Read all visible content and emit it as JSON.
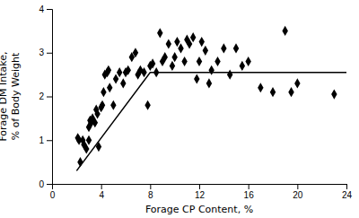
{
  "chart_data": {
    "type": "scatter",
    "xlabel": "Forage CP Content, %",
    "ylabel": "Forage DM Intake,\n% of Body Weight",
    "xlim": [
      0,
      24
    ],
    "ylim": [
      0,
      4
    ],
    "xticks": [
      0,
      4,
      8,
      12,
      16,
      20,
      24
    ],
    "yticks": [
      0,
      1,
      2,
      3,
      4
    ],
    "grid": false,
    "series": [
      {
        "type": "scatter",
        "color": "#000000",
        "marker": "diamond",
        "x": [
          2.1,
          2.2,
          2.3,
          2.5,
          2.6,
          2.8,
          3.0,
          3.0,
          3.1,
          3.2,
          3.3,
          3.5,
          3.6,
          3.7,
          3.8,
          4.0,
          4.1,
          4.2,
          4.3,
          4.5,
          4.6,
          4.7,
          5.0,
          5.2,
          5.5,
          5.8,
          6.0,
          6.2,
          6.5,
          6.8,
          7.0,
          7.2,
          7.5,
          7.8,
          8.0,
          8.2,
          8.5,
          8.8,
          9.0,
          9.2,
          9.5,
          9.8,
          10.0,
          10.2,
          10.5,
          10.8,
          11.0,
          11.2,
          11.5,
          11.8,
          12.0,
          12.2,
          12.5,
          12.8,
          13.0,
          13.5,
          14.0,
          14.5,
          15.0,
          15.5,
          16.0,
          17.0,
          18.0,
          19.0,
          19.5,
          20.0,
          23.0
        ],
        "values": [
          1.05,
          1.0,
          0.5,
          1.0,
          0.9,
          0.8,
          1.3,
          1.0,
          1.45,
          1.4,
          1.5,
          1.4,
          1.7,
          1.6,
          0.85,
          1.75,
          1.8,
          2.1,
          2.5,
          2.55,
          2.6,
          2.2,
          1.8,
          2.4,
          2.55,
          2.3,
          2.55,
          2.6,
          2.9,
          3.0,
          2.5,
          2.6,
          2.55,
          1.8,
          2.7,
          2.75,
          2.55,
          3.45,
          2.8,
          2.9,
          3.2,
          2.7,
          2.9,
          3.25,
          3.1,
          2.8,
          3.3,
          3.2,
          3.35,
          2.4,
          2.8,
          3.25,
          3.05,
          2.3,
          2.6,
          2.8,
          3.1,
          2.5,
          3.1,
          2.7,
          2.8,
          2.2,
          2.1,
          3.5,
          2.1,
          2.3,
          2.05
        ]
      },
      {
        "type": "line",
        "color": "#000000",
        "line_style": "solid",
        "x": [
          2.0,
          8.0,
          24.0
        ],
        "values": [
          0.3,
          2.55,
          2.55
        ]
      }
    ]
  }
}
